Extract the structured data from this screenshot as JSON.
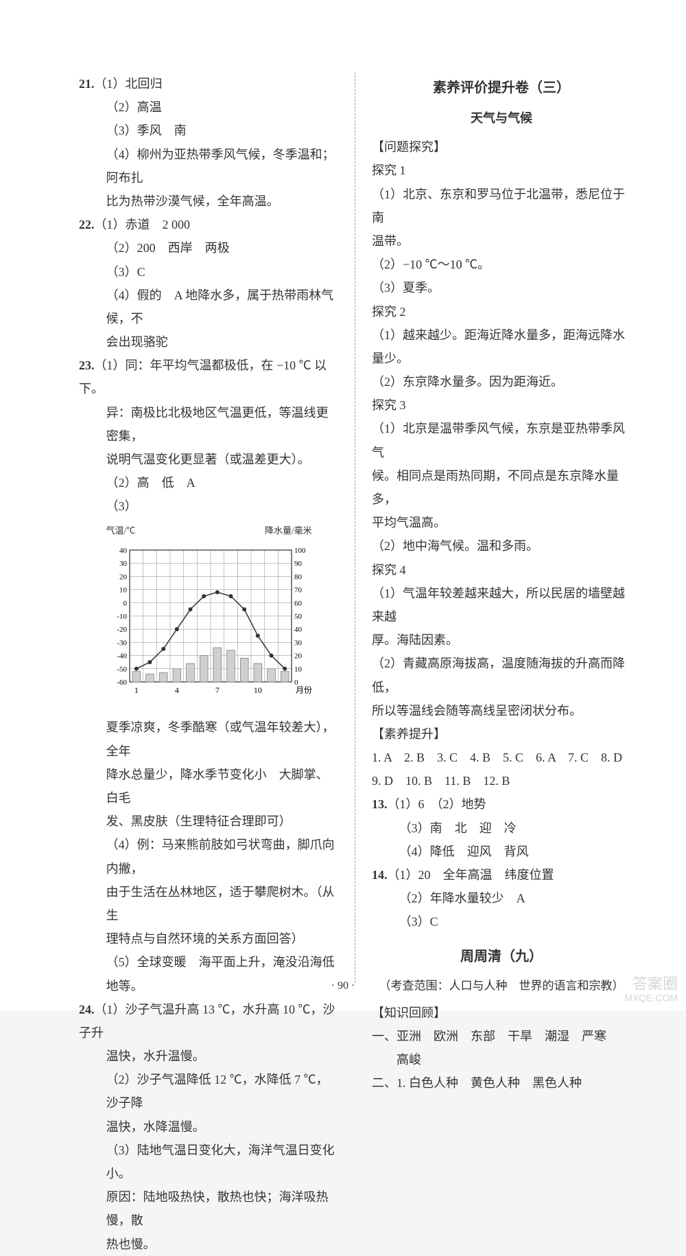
{
  "left": {
    "q21": {
      "num": "21.",
      "p1": "（1）北回归",
      "p2": "（2）高温",
      "p3": "（3）季风　南",
      "p4a": "（4）柳州为亚热带季风气候，冬季温和；阿布扎",
      "p4b": "比为热带沙漠气候，全年高温。"
    },
    "q22": {
      "num": "22.",
      "p1": "（1）赤道　2 000",
      "p2": "（2）200　西岸　两极",
      "p3": "（3）C",
      "p4a": "（4）假的　A 地降水多，属于热带雨林气候，不",
      "p4b": "会出现骆驼"
    },
    "q23": {
      "num": "23.",
      "p1a": "（1）同：年平均气温都极低，在 −10 ℃ 以下。",
      "p1b": "异：南极比北极地区气温更低，等温线更密集，",
      "p1c": "说明气温变化更显著（或温差更大）。",
      "p2": "（2）高　低　A",
      "p3": "（3）",
      "afterChartA": "夏季凉爽，冬季酷寒（或气温年较差大），全年",
      "afterChartB": "降水总量少，降水季节变化小　大脚掌、白毛",
      "afterChartC": "发、黑皮肤（生理特征合理即可）",
      "p4a": "（4）例：马来熊前肢如弓状弯曲，脚爪向内撇，",
      "p4b": "由于生活在丛林地区，适于攀爬树木。（从生",
      "p4c": "理特点与自然环境的关系方面回答）",
      "p5": "（5）全球变暖　海平面上升，淹没沿海低地等。"
    },
    "q24": {
      "num": "24.",
      "p1a": "（1）沙子气温升高 13 ℃，水升高 10 ℃，沙子升",
      "p1b": "温快，水升温慢。",
      "p2a": "（2）沙子气温降低 12 ℃，水降低 7 ℃，沙子降",
      "p2b": "温快，水降温慢。",
      "p3a": "（3）陆地气温日变化大，海洋气温日变化小。",
      "p3b": "原因：陆地吸热快，散热也快；海洋吸热慢，散",
      "p3c": "热也慢。"
    },
    "chart": {
      "type": "combo_bar_line",
      "left_axis_label": "气温/℃",
      "right_axis_label": "降水量/毫米",
      "xticks": [
        "1",
        "4",
        "7",
        "10",
        "月份"
      ],
      "temp_y": {
        "min": -60,
        "max": 40,
        "step": 10
      },
      "precip_y": {
        "min": 0,
        "max": 100,
        "step": 10
      },
      "temp_values": [
        -50,
        -45,
        -35,
        -20,
        -5,
        5,
        8,
        5,
        -5,
        -25,
        -40,
        -50
      ],
      "precip_values": [
        8,
        6,
        7,
        10,
        14,
        20,
        26,
        24,
        18,
        14,
        10,
        8
      ],
      "line_color": "#333333",
      "bar_color": "#cfcfcf",
      "bar_border": "#666666",
      "grid_color": "#888888",
      "background_color": "#ffffff",
      "axis_color": "#000000",
      "bar_width": 0.6,
      "line_width": 1.5,
      "marker": "circle",
      "marker_size": 3,
      "label_fontsize": 13
    }
  },
  "right": {
    "title1": "素养评价提升卷（三）",
    "subtitle1": "天气与气候",
    "wen_title": "【问题探究】",
    "t1": {
      "head": "探究 1",
      "l1": "（1）北京、东京和罗马位于北温带，悉尼位于南",
      "l1b": "温带。",
      "l2": "（2）−10 ℃～10 ℃。",
      "l3": "（3）夏季。"
    },
    "t2": {
      "head": "探究 2",
      "l1": "（1）越来越少。距海近降水量多，距海远降水",
      "l1b": "量少。",
      "l2": "（2）东京降水量多。因为距海近。"
    },
    "t3": {
      "head": "探究 3",
      "l1": "（1）北京是温带季风气候，东京是亚热带季风气",
      "l1b": "候。相同点是雨热同期，不同点是东京降水量多，",
      "l1c": "平均气温高。",
      "l2": "（2）地中海气候。温和多雨。"
    },
    "t4": {
      "head": "探究 4",
      "l1": "（1）气温年较差越来越大，所以民居的墙壁越来越",
      "l1b": "厚。海陆因素。",
      "l2": "（2）青藏高原海拔高，温度随海拔的升高而降低，",
      "l2b": "所以等温线会随等高线呈密闭状分布。"
    },
    "suyang_head": "【素养提升】",
    "answers_line1": "1. A　2. B　3. C　4. B　5. C　6. A　7. C　8. D",
    "answers_line2": "9. D　10. B　11. B　12. B",
    "q13": {
      "num": "13.",
      "p1": "（1）6　（2）地势",
      "p3": "（3）南　北　迎　冷",
      "p4": "（4）降低　迎风　背风"
    },
    "q14": {
      "num": "14.",
      "p1": "（1）20　全年高温　纬度位置",
      "p2": "（2）年降水量较少　A",
      "p3": "（3）C"
    },
    "zhou_title": "周周清（九）",
    "zhou_scope": "（考查范围：人口与人种　世界的语言和宗教）",
    "zhishi_head": "【知识回顾】",
    "yi1": "一、亚洲　欧洲　东部　干旱　潮湿　严寒",
    "yi1b": "　　高峻",
    "er1": "二、1. 白色人种　黄色人种　黑色人种"
  },
  "footer": "· 90 ·",
  "watermark_br_line1": "答案圈",
  "watermark_br_line2": "MXQE.COM"
}
